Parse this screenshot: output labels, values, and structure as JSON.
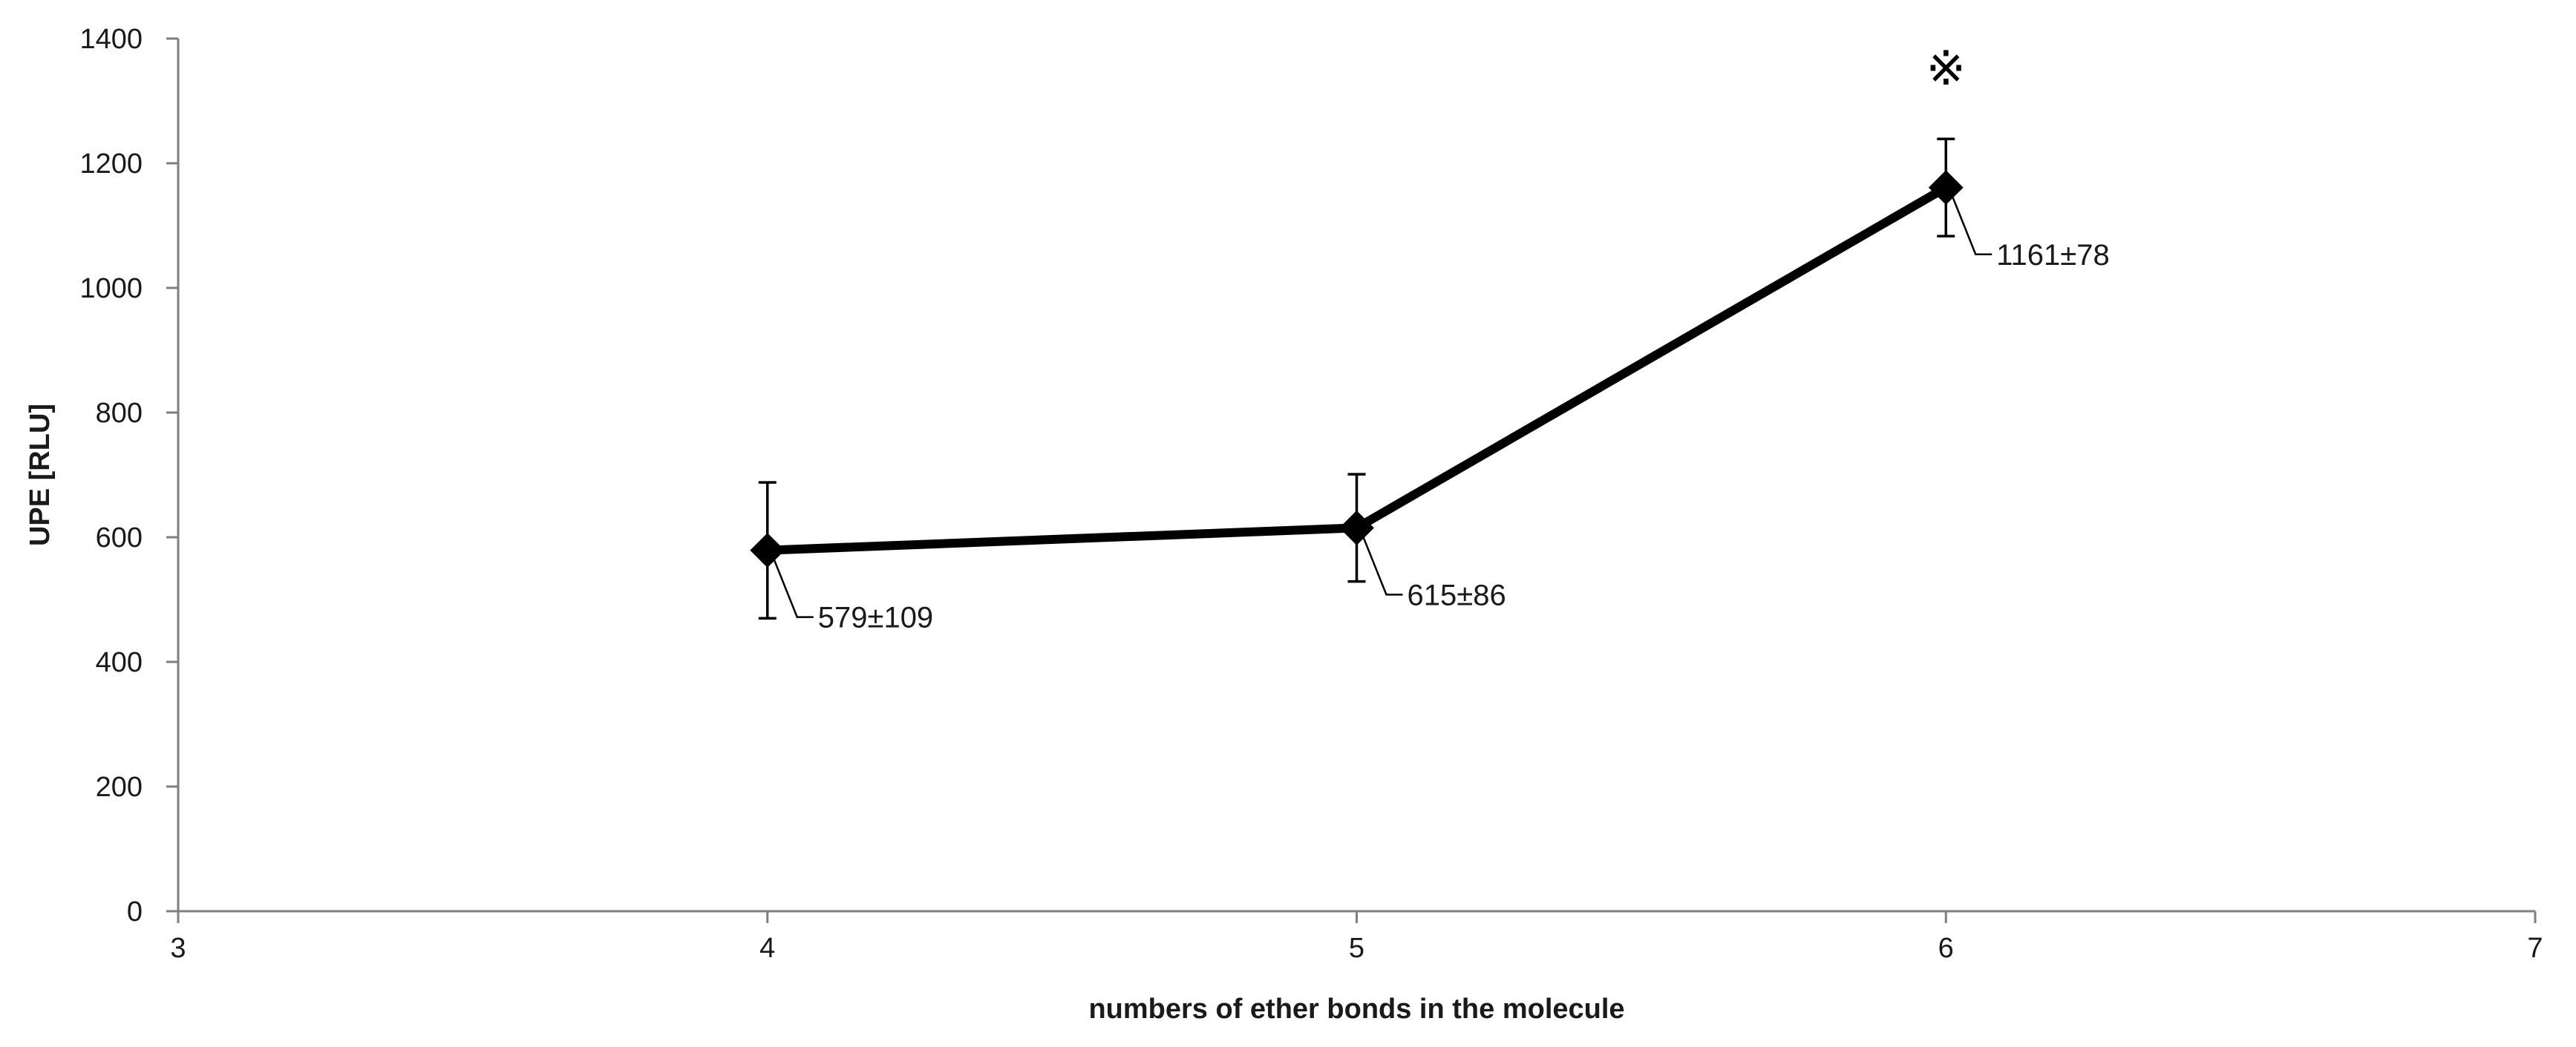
{
  "chart_data": {
    "type": "scatter",
    "xlabel": "numbers of ether bonds in the molecule",
    "ylabel": "UPE [RLU]",
    "xlim": [
      3,
      7
    ],
    "ylim": [
      0,
      1400
    ],
    "xticks": [
      3,
      4,
      5,
      6,
      7
    ],
    "yticks": [
      0,
      200,
      400,
      600,
      800,
      1000,
      1200,
      1400
    ],
    "grid": false,
    "legend": "none",
    "series": [
      {
        "color": "#000000",
        "marker": "diamond",
        "points": [
          {
            "x": 4,
            "y": 579,
            "error": 109,
            "label": "579±109"
          },
          {
            "x": 5,
            "y": 615,
            "error": 86,
            "label": "615±86"
          },
          {
            "x": 6,
            "y": 1161,
            "error": 78,
            "label": "1161±78"
          }
        ]
      }
    ],
    "annotations": [
      {
        "text": "※",
        "x": 6,
        "y": 1350
      }
    ]
  }
}
